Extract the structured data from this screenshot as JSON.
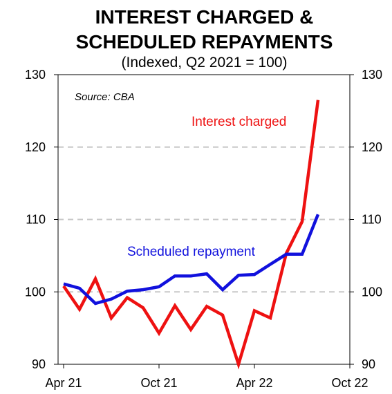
{
  "title_line1": "INTEREST CHARGED &",
  "title_line2": "SCHEDULED REPAYMENTS",
  "subtitle": "(Indexed, Q2 2021 = 100)",
  "chart_data": {
    "type": "line",
    "title": "INTEREST CHARGED & SCHEDULED REPAYMENTS",
    "subtitle": "(Indexed, Q2 2021 = 100)",
    "annotation": "Source: CBA",
    "x_ticks": [
      "Apr 21",
      "Oct 21",
      "Apr 22",
      "Oct 22"
    ],
    "x_range": [
      "Apr 21",
      "Oct 22"
    ],
    "y_ticks": [
      90,
      100,
      110,
      120,
      130
    ],
    "ylim": [
      90,
      130
    ],
    "ticks_both_sides": true,
    "grid": "dashed horizontal",
    "x": [
      "2021-04",
      "2021-05",
      "2021-06",
      "2021-07",
      "2021-08",
      "2021-09",
      "2021-10",
      "2021-11",
      "2021-12",
      "2022-01",
      "2022-02",
      "2022-03",
      "2022-04",
      "2022-05",
      "2022-06",
      "2022-07",
      "2022-08",
      "2022-09"
    ],
    "series": [
      {
        "name": "Interest charged",
        "color": "#ee1111",
        "values": [
          100.8,
          97.6,
          101.8,
          96.4,
          99.2,
          97.8,
          94.3,
          98.1,
          94.8,
          98.0,
          96.8,
          90.0,
          97.4,
          96.4,
          105.3,
          109.7,
          126.5,
          null
        ]
      },
      {
        "name": "Scheduled repayment",
        "color": "#1111dd",
        "values": [
          101.1,
          100.5,
          98.4,
          99.0,
          100.1,
          100.3,
          100.7,
          102.2,
          102.2,
          102.5,
          100.3,
          102.3,
          102.4,
          103.8,
          105.2,
          105.2,
          110.7,
          null
        ]
      }
    ]
  }
}
